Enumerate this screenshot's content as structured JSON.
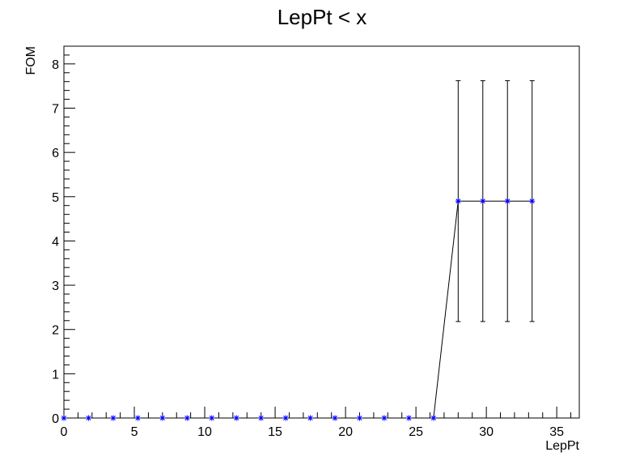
{
  "chart_data": {
    "type": "scatter",
    "title": "LepPt < x",
    "xlabel": "LepPt",
    "ylabel": "FOM",
    "xlim": [
      0,
      36.6
    ],
    "ylim": [
      0,
      8.4
    ],
    "x_ticks": [
      "0",
      "5",
      "10",
      "15",
      "20",
      "25",
      "30",
      "35"
    ],
    "y_ticks": [
      "0",
      "1",
      "2",
      "3",
      "4",
      "5",
      "6",
      "7",
      "8"
    ],
    "grid": false,
    "legend": "none",
    "series": [
      {
        "marker_color": "#0000ff",
        "line_color": "#000000",
        "x": [
          0,
          1.75,
          3.5,
          5.25,
          7,
          8.75,
          10.5,
          12.25,
          14,
          15.75,
          17.5,
          19.25,
          21,
          22.75,
          24.5,
          26.25,
          28,
          29.75,
          31.5,
          33.25
        ],
        "y": [
          0,
          0,
          0,
          0,
          0,
          0,
          0,
          0,
          0,
          0,
          0,
          0,
          0,
          0,
          0,
          0,
          4.9,
          4.9,
          4.9,
          4.9
        ],
        "yerr": [
          0,
          0,
          0,
          0,
          0,
          0,
          0,
          0,
          0,
          0,
          0,
          0,
          0,
          0,
          0,
          0,
          2.72,
          2.72,
          2.72,
          2.72
        ]
      }
    ]
  }
}
